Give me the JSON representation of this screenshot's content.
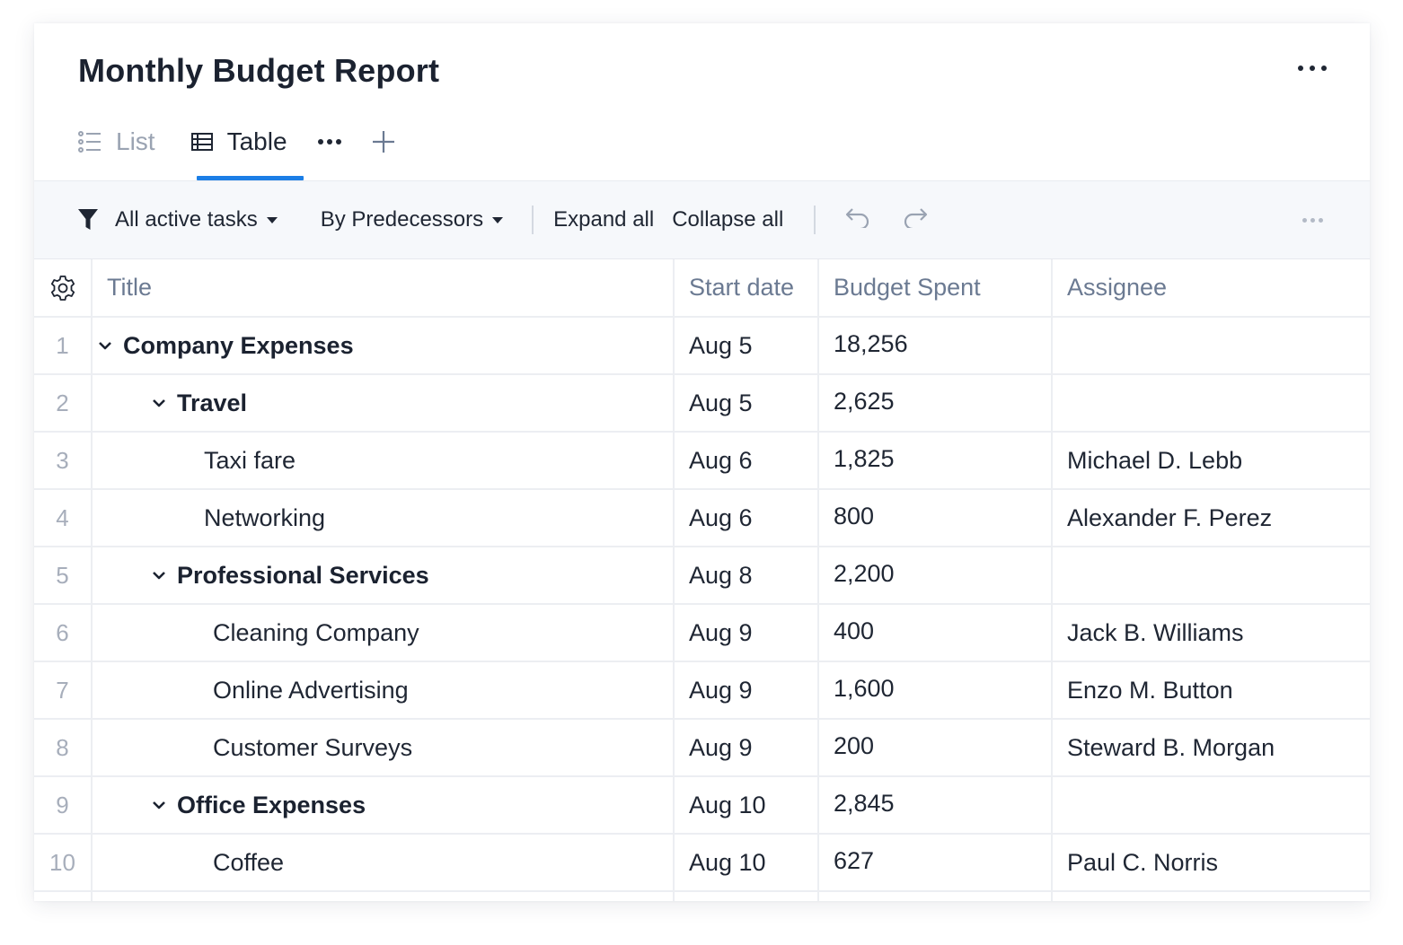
{
  "report": {
    "title": "Monthly Budget Report"
  },
  "tabs": [
    {
      "label": "List",
      "icon": "list-icon",
      "active": false
    },
    {
      "label": "Table",
      "icon": "table-icon",
      "active": true
    }
  ],
  "toolbar": {
    "filter_label": "All active tasks",
    "sort_label": "By Predecessors",
    "expand_label": "Expand all",
    "collapse_label": "Collapse all"
  },
  "columns": {
    "title": "Title",
    "start_date": "Start date",
    "budget_spent": "Budget Spent",
    "assignee": "Assignee"
  },
  "rows": [
    {
      "num": "1",
      "title": "Company Expenses",
      "start": "Aug 5",
      "budget": "18,256",
      "assignee": "",
      "group": true,
      "level": 0
    },
    {
      "num": "2",
      "title": "Travel",
      "start": "Aug 5",
      "budget": "2,625",
      "assignee": "",
      "group": true,
      "level": 1
    },
    {
      "num": "3",
      "title": "Taxi fare",
      "start": "Aug 6",
      "budget": "1,825",
      "assignee": "Michael D. Lebb",
      "group": false,
      "level": 2
    },
    {
      "num": "4",
      "title": "Networking",
      "start": "Aug 6",
      "budget": "800",
      "assignee": "Alexander F. Perez",
      "group": false,
      "level": 2
    },
    {
      "num": "5",
      "title": "Professional Services",
      "start": "Aug 8",
      "budget": "2,200",
      "assignee": "",
      "group": true,
      "level": 1
    },
    {
      "num": "6",
      "title": "Cleaning Company",
      "start": "Aug 9",
      "budget": "400",
      "assignee": "Jack B. Williams",
      "group": false,
      "level": 3
    },
    {
      "num": "7",
      "title": "Online Advertising",
      "start": "Aug 9",
      "budget": "1,600",
      "assignee": "Enzo M. Button",
      "group": false,
      "level": 3
    },
    {
      "num": "8",
      "title": "Customer Surveys",
      "start": "Aug 9",
      "budget": "200",
      "assignee": "Steward B. Morgan",
      "group": false,
      "level": 3
    },
    {
      "num": "9",
      "title": "Office Expenses",
      "start": "Aug 10",
      "budget": "2,845",
      "assignee": "",
      "group": true,
      "level": 1
    },
    {
      "num": "10",
      "title": "Coffee",
      "start": "Aug 10",
      "budget": "627",
      "assignee": "Paul C. Norris",
      "group": false,
      "level": 3
    }
  ],
  "colors": {
    "accent": "#1b7ee6",
    "text": "#1f2633",
    "muted": "#9aa3b2",
    "header": "#6b7a92",
    "toolbar_bg": "#f6f8fb",
    "border": "#eceef2"
  }
}
